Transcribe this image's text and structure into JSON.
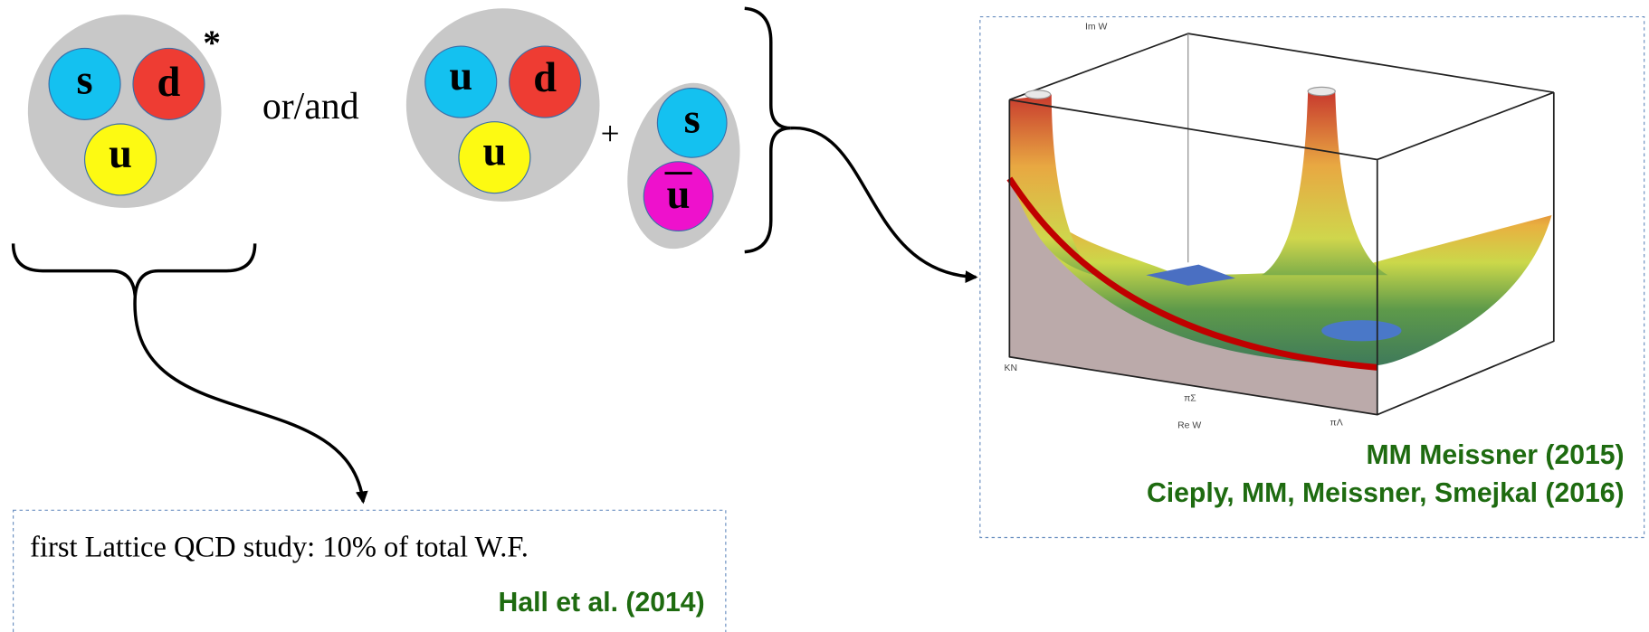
{
  "left_baryon": {
    "quarks": [
      "s",
      "d",
      "u"
    ],
    "mark": "*"
  },
  "connector": "or/and",
  "right_baryon": {
    "quarks": [
      "u",
      "d",
      "u"
    ]
  },
  "plus": "+",
  "meson": {
    "quarks": [
      "s",
      "u"
    ]
  },
  "lattice_box": {
    "text": "first Lattice QCD  study: 10% of total W.F.",
    "citation": "Hall et al. (2014)"
  },
  "plot": {
    "axis_labels": {
      "im": "Im W",
      "re": "Re W"
    },
    "thresholds": [
      "KN",
      "πΣ",
      "πΛ"
    ]
  },
  "citations": [
    "MM Meissner (2015)",
    "Cieply, MM, Meissner, Smejkal (2016)"
  ]
}
